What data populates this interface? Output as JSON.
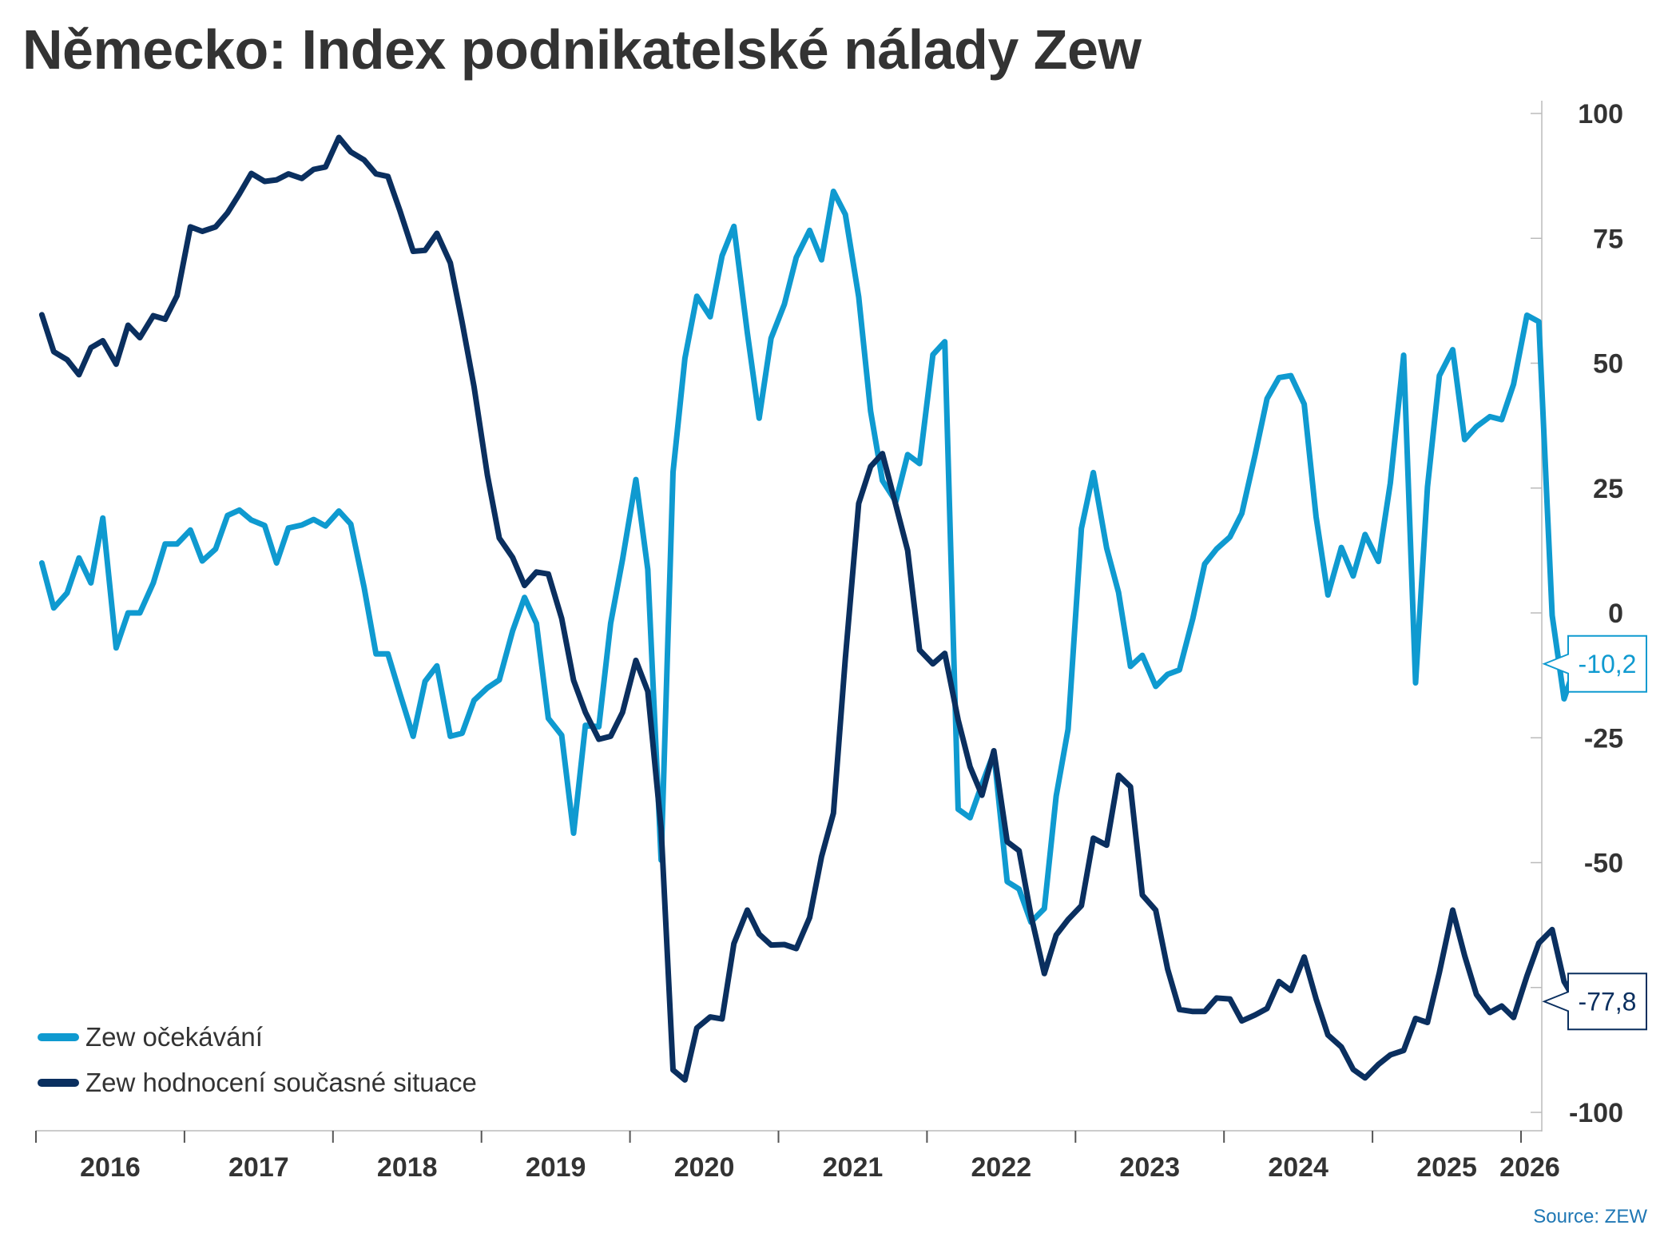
{
  "chart_data": {
    "type": "line",
    "title": "Německo: Index podnikatelské nálady Zew",
    "source": "Source: ZEW",
    "ylim": [
      -100,
      100
    ],
    "y_ticks": [
      100,
      75,
      50,
      25,
      0,
      -25,
      -50,
      -75,
      -100
    ],
    "x_range": [
      2016.0,
      2026.0
    ],
    "x_tick_labels": [
      "2016",
      "2017",
      "2018",
      "2019",
      "2020",
      "2021",
      "2022",
      "2023",
      "2024",
      "2025",
      "2026"
    ],
    "legend_position": "bottom-left",
    "grid": false,
    "series": [
      {
        "name": "Zew očekávání",
        "color": "#0f9ad0",
        "end_label": "-10,2",
        "values": [
          [
            2016.04,
            10
          ],
          [
            2016.12,
            1
          ],
          [
            2016.21,
            4
          ],
          [
            2016.29,
            11
          ],
          [
            2016.37,
            6
          ],
          [
            2016.45,
            19
          ],
          [
            2016.54,
            -7
          ],
          [
            2016.62,
            0
          ],
          [
            2016.7,
            0
          ],
          [
            2016.79,
            6
          ],
          [
            2016.87,
            13.8
          ],
          [
            2016.95,
            13.8
          ],
          [
            2017.04,
            16.6
          ],
          [
            2017.12,
            10.4
          ],
          [
            2017.21,
            12.8
          ],
          [
            2017.29,
            19.5
          ],
          [
            2017.37,
            20.6
          ],
          [
            2017.45,
            18.6
          ],
          [
            2017.54,
            17.5
          ],
          [
            2017.62,
            10
          ],
          [
            2017.7,
            17
          ],
          [
            2017.79,
            17.6
          ],
          [
            2017.87,
            18.7
          ],
          [
            2017.95,
            17.4
          ],
          [
            2018.04,
            20.4
          ],
          [
            2018.12,
            17.8
          ],
          [
            2018.21,
            5.1
          ],
          [
            2018.29,
            -8.2
          ],
          [
            2018.37,
            -8.2
          ],
          [
            2018.45,
            -16.1
          ],
          [
            2018.54,
            -24.7
          ],
          [
            2018.62,
            -13.7
          ],
          [
            2018.7,
            -10.6
          ],
          [
            2018.79,
            -24.7
          ],
          [
            2018.87,
            -24.1
          ],
          [
            2018.95,
            -17.5
          ],
          [
            2019.04,
            -15
          ],
          [
            2019.12,
            -13.4
          ],
          [
            2019.21,
            -3.6
          ],
          [
            2019.29,
            3.1
          ],
          [
            2019.37,
            -2.1
          ],
          [
            2019.45,
            -21.1
          ],
          [
            2019.54,
            -24.5
          ],
          [
            2019.62,
            -44.1
          ],
          [
            2019.7,
            -22.5
          ],
          [
            2019.79,
            -22.8
          ],
          [
            2019.87,
            -2.1
          ],
          [
            2019.95,
            10.7
          ],
          [
            2020.04,
            26.7
          ],
          [
            2020.12,
            8.7
          ],
          [
            2020.21,
            -49.5
          ],
          [
            2020.29,
            28.2
          ],
          [
            2020.37,
            51
          ],
          [
            2020.45,
            63.4
          ],
          [
            2020.54,
            59.3
          ],
          [
            2020.62,
            71.5
          ],
          [
            2020.7,
            77.4
          ],
          [
            2020.79,
            56.1
          ],
          [
            2020.87,
            39
          ],
          [
            2020.95,
            55
          ],
          [
            2021.04,
            61.8
          ],
          [
            2021.12,
            71.2
          ],
          [
            2021.21,
            76.6
          ],
          [
            2021.29,
            70.7
          ],
          [
            2021.37,
            84.4
          ],
          [
            2021.45,
            79.8
          ],
          [
            2021.54,
            63.3
          ],
          [
            2021.62,
            40.4
          ],
          [
            2021.7,
            26.5
          ],
          [
            2021.79,
            22.3
          ],
          [
            2021.87,
            31.7
          ],
          [
            2021.95,
            29.9
          ],
          [
            2022.04,
            51.7
          ],
          [
            2022.12,
            54.3
          ],
          [
            2022.21,
            -39.3
          ],
          [
            2022.29,
            -41
          ],
          [
            2022.37,
            -34.3
          ],
          [
            2022.45,
            -28
          ],
          [
            2022.54,
            -53.8
          ],
          [
            2022.62,
            -55.3
          ],
          [
            2022.7,
            -61.9
          ],
          [
            2022.79,
            -59.2
          ],
          [
            2022.87,
            -36.7
          ],
          [
            2022.95,
            -23.3
          ],
          [
            2023.04,
            16.9
          ],
          [
            2023.12,
            28.1
          ],
          [
            2023.21,
            13
          ],
          [
            2023.29,
            4.1
          ],
          [
            2023.37,
            -10.7
          ],
          [
            2023.45,
            -8.5
          ],
          [
            2023.54,
            -14.7
          ],
          [
            2023.62,
            -12.3
          ],
          [
            2023.7,
            -11.4
          ],
          [
            2023.79,
            -1.1
          ],
          [
            2023.87,
            9.8
          ],
          [
            2023.95,
            12.8
          ],
          [
            2024.04,
            15.2
          ],
          [
            2024.12,
            19.9
          ],
          [
            2024.21,
            31.7
          ],
          [
            2024.29,
            42.9
          ],
          [
            2024.37,
            47.1
          ],
          [
            2024.45,
            47.5
          ],
          [
            2024.54,
            41.8
          ],
          [
            2024.62,
            19.2
          ],
          [
            2024.7,
            3.6
          ],
          [
            2024.79,
            13.1
          ],
          [
            2024.87,
            7.4
          ],
          [
            2024.95,
            15.7
          ],
          [
            2025.04,
            10.3
          ],
          [
            2025.12,
            26
          ],
          [
            2025.21,
            51.6
          ],
          [
            2025.29,
            -14
          ],
          [
            2025.37,
            25.2
          ],
          [
            2025.45,
            47.5
          ],
          [
            2025.54,
            52.7
          ],
          [
            2025.62,
            34.7
          ],
          [
            2025.7,
            37.3
          ],
          [
            2025.79,
            39.3
          ],
          [
            2025.87,
            38.7
          ],
          [
            2025.95,
            45.8
          ],
          [
            2026.04,
            59.6
          ],
          [
            2026.12,
            58.3
          ],
          [
            2026.21,
            -0.5
          ],
          [
            2026.29,
            -17.2
          ],
          [
            2026.37,
            -10.2
          ]
        ]
      },
      {
        "name": "Zew hodnocení současné situace",
        "color": "#0a2f5f",
        "end_label": "-77,8",
        "values": [
          [
            2016.04,
            59.7
          ],
          [
            2016.12,
            52.3
          ],
          [
            2016.21,
            50.7
          ],
          [
            2016.29,
            47.7
          ],
          [
            2016.37,
            53.1
          ],
          [
            2016.45,
            54.5
          ],
          [
            2016.54,
            49.8
          ],
          [
            2016.62,
            57.6
          ],
          [
            2016.7,
            55.1
          ],
          [
            2016.79,
            59.5
          ],
          [
            2016.87,
            58.8
          ],
          [
            2016.95,
            63.5
          ],
          [
            2017.04,
            77.3
          ],
          [
            2017.12,
            76.4
          ],
          [
            2017.21,
            77.3
          ],
          [
            2017.29,
            80.1
          ],
          [
            2017.37,
            83.9
          ],
          [
            2017.45,
            88
          ],
          [
            2017.54,
            86.4
          ],
          [
            2017.62,
            86.7
          ],
          [
            2017.7,
            87.9
          ],
          [
            2017.79,
            87
          ],
          [
            2017.87,
            88.8
          ],
          [
            2017.95,
            89.3
          ],
          [
            2018.04,
            95.2
          ],
          [
            2018.12,
            92.3
          ],
          [
            2018.21,
            90.7
          ],
          [
            2018.29,
            87.9
          ],
          [
            2018.37,
            87.4
          ],
          [
            2018.45,
            80.6
          ],
          [
            2018.54,
            72.4
          ],
          [
            2018.62,
            72.6
          ],
          [
            2018.7,
            76
          ],
          [
            2018.79,
            70.1
          ],
          [
            2018.87,
            58.2
          ],
          [
            2018.95,
            45.3
          ],
          [
            2019.04,
            27.6
          ],
          [
            2019.12,
            15
          ],
          [
            2019.21,
            11.1
          ],
          [
            2019.29,
            5.5
          ],
          [
            2019.37,
            8.2
          ],
          [
            2019.45,
            7.8
          ],
          [
            2019.54,
            -1.1
          ],
          [
            2019.62,
            -13.5
          ],
          [
            2019.7,
            -19.9
          ],
          [
            2019.79,
            -25.3
          ],
          [
            2019.87,
            -24.7
          ],
          [
            2019.95,
            -19.9
          ],
          [
            2020.04,
            -9.5
          ],
          [
            2020.12,
            -15.7
          ],
          [
            2020.21,
            -43.1
          ],
          [
            2020.29,
            -91.5
          ],
          [
            2020.37,
            -93.5
          ],
          [
            2020.45,
            -83.1
          ],
          [
            2020.54,
            -80.9
          ],
          [
            2020.62,
            -81.3
          ],
          [
            2020.7,
            -66.2
          ],
          [
            2020.79,
            -59.5
          ],
          [
            2020.87,
            -64.3
          ],
          [
            2020.95,
            -66.5
          ],
          [
            2021.04,
            -66.4
          ],
          [
            2021.12,
            -67.2
          ],
          [
            2021.21,
            -61
          ],
          [
            2021.29,
            -48.8
          ],
          [
            2021.37,
            -40.1
          ],
          [
            2021.45,
            -9.1
          ],
          [
            2021.54,
            21.9
          ],
          [
            2021.62,
            29.3
          ],
          [
            2021.7,
            31.9
          ],
          [
            2021.79,
            21.6
          ],
          [
            2021.87,
            12.5
          ],
          [
            2021.95,
            -7.4
          ],
          [
            2022.04,
            -10.2
          ],
          [
            2022.12,
            -8.1
          ],
          [
            2022.21,
            -21.4
          ],
          [
            2022.29,
            -30.8
          ],
          [
            2022.37,
            -36.5
          ],
          [
            2022.45,
            -27.6
          ],
          [
            2022.54,
            -45.8
          ],
          [
            2022.62,
            -47.6
          ],
          [
            2022.7,
            -60.5
          ],
          [
            2022.79,
            -72.2
          ],
          [
            2022.87,
            -64.5
          ],
          [
            2022.95,
            -61.4
          ],
          [
            2023.04,
            -58.6
          ],
          [
            2023.12,
            -45.1
          ],
          [
            2023.21,
            -46.5
          ],
          [
            2023.29,
            -32.5
          ],
          [
            2023.37,
            -34.8
          ],
          [
            2023.45,
            -56.5
          ],
          [
            2023.54,
            -59.5
          ],
          [
            2023.62,
            -71.3
          ],
          [
            2023.7,
            -79.4
          ],
          [
            2023.79,
            -79.8
          ],
          [
            2023.87,
            -79.8
          ],
          [
            2023.95,
            -77.1
          ],
          [
            2024.04,
            -77.3
          ],
          [
            2024.12,
            -81.7
          ],
          [
            2024.21,
            -80.5
          ],
          [
            2024.29,
            -79.2
          ],
          [
            2024.37,
            -73.8
          ],
          [
            2024.45,
            -75.6
          ],
          [
            2024.54,
            -68.9
          ],
          [
            2024.62,
            -77.3
          ],
          [
            2024.7,
            -84.5
          ],
          [
            2024.79,
            -86.9
          ],
          [
            2024.87,
            -91.4
          ],
          [
            2024.95,
            -93.1
          ],
          [
            2025.04,
            -90.4
          ],
          [
            2025.12,
            -88.5
          ],
          [
            2025.21,
            -87.6
          ],
          [
            2025.29,
            -81.2
          ],
          [
            2025.37,
            -82
          ],
          [
            2025.45,
            -72
          ],
          [
            2025.54,
            -59.5
          ],
          [
            2025.62,
            -68.6
          ],
          [
            2025.7,
            -76.4
          ],
          [
            2025.79,
            -80
          ],
          [
            2025.87,
            -78.7
          ],
          [
            2025.95,
            -81
          ],
          [
            2026.04,
            -72.7
          ],
          [
            2026.12,
            -66.1
          ],
          [
            2026.21,
            -63.4
          ],
          [
            2026.29,
            -73.8
          ],
          [
            2026.37,
            -77.8
          ]
        ]
      }
    ]
  }
}
